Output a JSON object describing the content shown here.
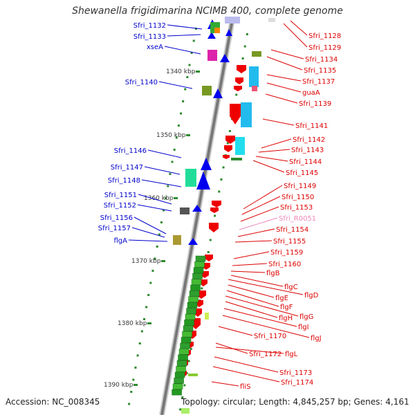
{
  "title": "Shewanella frigidimarina NCIMB 400, complete genome",
  "footer": {
    "accession": "Accession: NC_008345",
    "topology": "Topology: circular; Length: 4,845,257 bp; Genes: 4,161"
  },
  "colors": {
    "backbone": "#888888",
    "left_labels": "#0000cc",
    "right_labels": "#dd0000",
    "rna_label": "#ee88bb",
    "ticks": "#2d8a2d",
    "forward_strand": "#0000ee",
    "reverse_strand": "#ee0000"
  },
  "kbp_marks": [
    "1340 kbp",
    "1350 kbp",
    "1360 kbp",
    "1370 kbp",
    "1380 kbp",
    "1390 kbp"
  ],
  "left_labels": [
    "Sfri_1132",
    "Sfri_1133",
    "xseA",
    "Sfri_1140",
    "Sfri_1146",
    "Sfri_1147",
    "Sfri_1148",
    "Sfri_1151",
    "Sfri_1152",
    "Sfri_1156",
    "Sfri_1157",
    "flgA"
  ],
  "right_labels": [
    "Sfri_1128",
    "Sfri_1129",
    "Sfri_1134",
    "Sfri_1135",
    "Sfri_1137",
    "guaA",
    "Sfri_1139",
    "Sfri_1141",
    "Sfri_1142",
    "Sfri_1143",
    "Sfri_1144",
    "Sfri_1145",
    "Sfri_1149",
    "Sfri_1150",
    "Sfri_1153",
    "Sfri_R0051",
    "Sfri_1154",
    "Sfri_1155",
    "Sfri_1159",
    "Sfri_1160",
    "flgB",
    "flgC",
    "flgD",
    "flgE",
    "flgF",
    "flgG",
    "flgH",
    "flgI",
    "flgJ",
    "Sfri_1170",
    "Sfri_1172",
    "flgL",
    "Sfri_1173",
    "Sfri_1174",
    "fliS"
  ]
}
